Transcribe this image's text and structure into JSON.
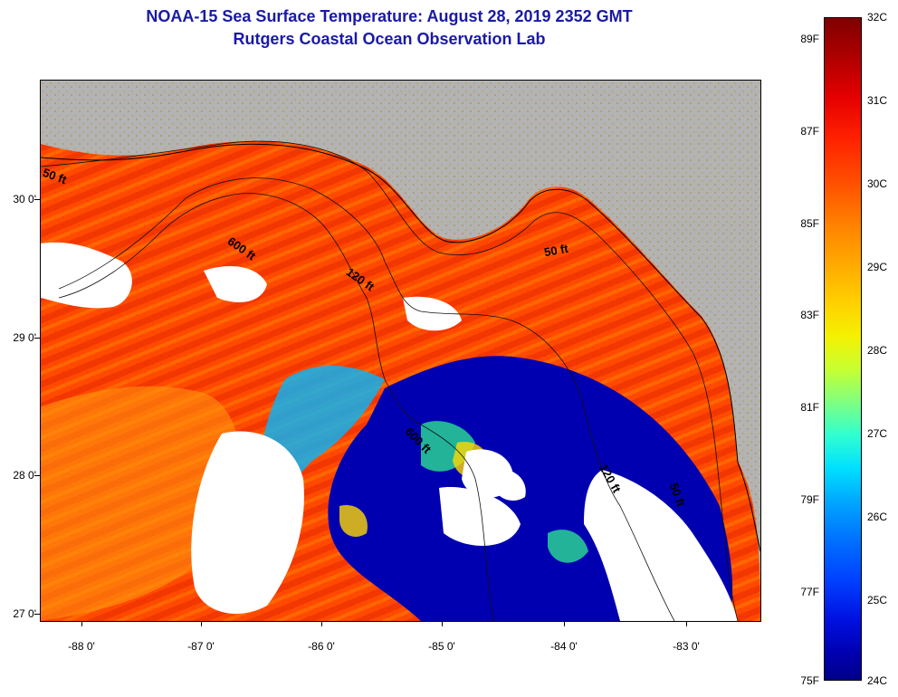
{
  "title": {
    "line1": "NOAA-15 Sea Surface Temperature:  August 28, 2019 2352 GMT",
    "line2": "Rutgers Coastal Ocean Observation Lab"
  },
  "map": {
    "lat_labels": [
      "30 0'",
      "29 0'",
      "28 0'",
      "27 0'"
    ],
    "lon_labels": [
      "-88 0'",
      "-87 0'",
      "-86 0'",
      "-85 0'",
      "-84 0'",
      "-83 0'"
    ],
    "depth_contour_labels": [
      "50 ft",
      "600 ft",
      "120 ft",
      "50 ft",
      "600 ft",
      "120 ft",
      "50 ft"
    ],
    "colors": {
      "land": "#b3b3b3",
      "cloud": "#ffffff",
      "warm": "#ff4000",
      "cool": "#0000b0"
    }
  },
  "colorbar": {
    "celsius": [
      "32C",
      "31C",
      "30C",
      "29C",
      "28C",
      "27C",
      "26C",
      "25C",
      "24C"
    ],
    "fahrenheit": [
      "89F",
      "87F",
      "85F",
      "83F",
      "81F",
      "79F",
      "77F",
      "75F"
    ]
  }
}
